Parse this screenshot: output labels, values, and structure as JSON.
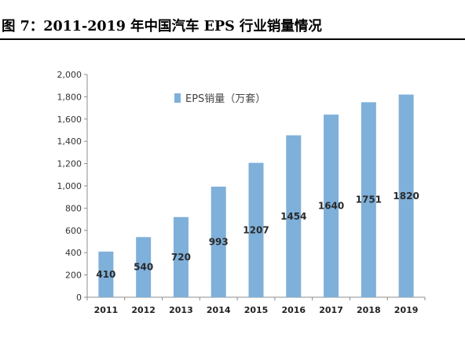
{
  "figure": {
    "title": "图 7：2011-2019 年中国汽车 EPS 行业销量情况"
  },
  "chart_data": {
    "type": "bar",
    "categories": [
      "2011",
      "2012",
      "2013",
      "2014",
      "2015",
      "2016",
      "2017",
      "2018",
      "2019"
    ],
    "series": [
      {
        "name": "EPS销量（万套）",
        "values": [
          410,
          540,
          720,
          993,
          1207,
          1454,
          1640,
          1751,
          1820
        ],
        "color": "#7eb0da"
      }
    ],
    "data_labels": [
      "410",
      "540",
      "720",
      "993",
      "1207",
      "1454",
      "1640",
      "1751",
      "1820"
    ],
    "ylim": [
      0,
      2000
    ],
    "y_ticks": [
      0,
      200,
      400,
      600,
      800,
      1000,
      1200,
      1400,
      1600,
      1800,
      2000
    ],
    "y_tick_labels": [
      "0",
      "200",
      "400",
      "600",
      "800",
      "1,000",
      "1,200",
      "1,400",
      "1,600",
      "1,800",
      "2,000"
    ],
    "grid": false,
    "legend_position": "top-left"
  }
}
